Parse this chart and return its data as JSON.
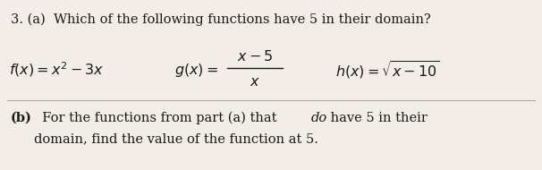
{
  "figsize": [
    6.06,
    1.9
  ],
  "dpi": 100,
  "bg_color": "#f2ede6",
  "line_color": "#aaaaaa",
  "text_color": "#1a1a1a",
  "title": "3. (a)  Which of the following functions have 5 in their domain?",
  "f_expr": "$f(x) = x^2 - 3x$",
  "g_label": "$g(x) =$",
  "g_num": "$x - 5$",
  "g_den": "$x$",
  "h_expr": "$h(x) = \\sqrt{x - 10}$",
  "b_bold": "(b)",
  "b_text1": "  For the functions from part (a) that ",
  "b_italic": "do",
  "b_text2": " have 5 in their",
  "b_line2": "domain, find the value of the function at 5."
}
